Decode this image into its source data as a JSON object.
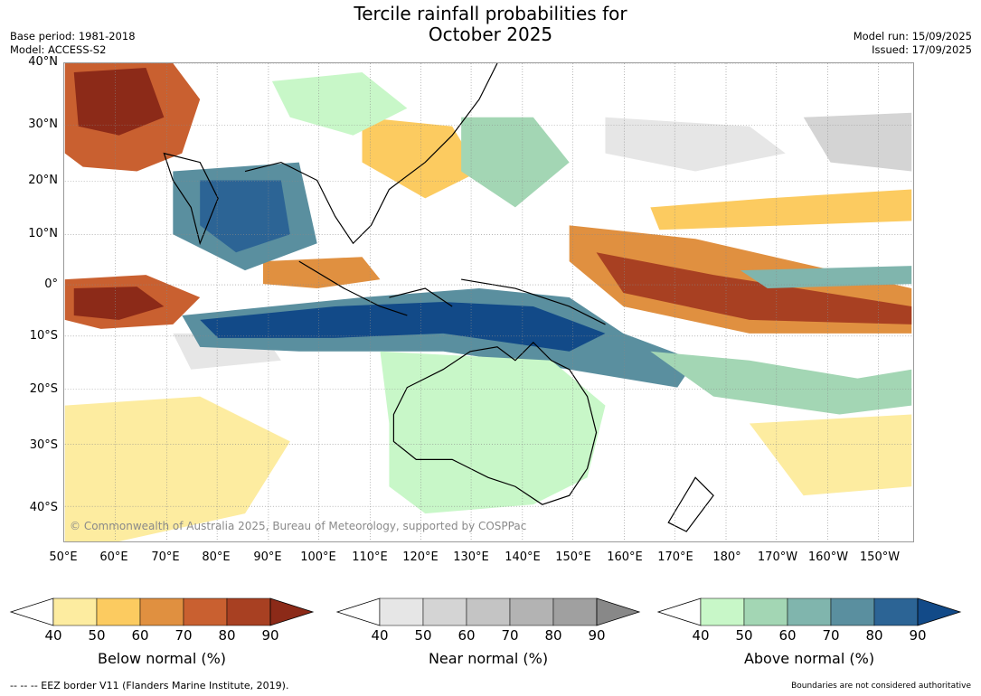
{
  "title": "Tercile rainfall probabilities for\nOctober 2025",
  "title_line1": "Tercile rainfall probabilities for",
  "title_line2": "October 2025",
  "meta_left": [
    "Base period: 1981-2018",
    "Model: ACCESS-S2"
  ],
  "meta_right": [
    "Model run: 15/09/2025",
    "Issued: 17/09/2025"
  ],
  "lat_labels": [
    "40°N",
    "30°N",
    "20°N",
    "10°N",
    "0°",
    "10°S",
    "20°S",
    "30°S",
    "40°S"
  ],
  "lon_labels": [
    "50°E",
    "60°E",
    "70°E",
    "80°E",
    "90°E",
    "100°E",
    "110°E",
    "120°E",
    "130°E",
    "140°E",
    "150°E",
    "160°E",
    "170°E",
    "180°",
    "170°W",
    "160°W",
    "150°W"
  ],
  "credit": "© Commonwealth of Australia 2025, Bureau of Meteorology, supported by COSPPac",
  "colorbars": [
    {
      "label": "Below normal (%)",
      "ticks": [
        "40",
        "50",
        "60",
        "70",
        "80",
        "90"
      ],
      "colors": [
        "#fdeca0",
        "#fccb60",
        "#e09040",
        "#c96030",
        "#a84022",
        "#8c2a18"
      ]
    },
    {
      "label": "Near normal (%)",
      "ticks": [
        "40",
        "50",
        "60",
        "70",
        "80",
        "90"
      ],
      "colors": [
        "#e6e6e6",
        "#d4d4d4",
        "#c4c4c4",
        "#b3b3b3",
        "#a0a0a0",
        "#888888"
      ]
    },
    {
      "label": "Above normal (%)",
      "ticks": [
        "40",
        "50",
        "60",
        "70",
        "80",
        "90"
      ],
      "colors": [
        "#c8f7c8",
        "#a3d6b4",
        "#80b5ad",
        "#5a8f9f",
        "#2c6495",
        "#124a88"
      ]
    }
  ],
  "footer_left": "--  --  -- EEZ border V11 (Flanders Marine Institute, 2019).",
  "footer_right": "Boundaries are not considered authoritative"
}
